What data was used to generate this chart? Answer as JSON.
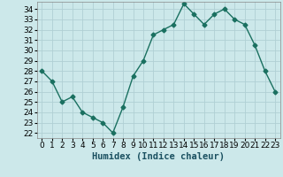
{
  "x": [
    0,
    1,
    2,
    3,
    4,
    5,
    6,
    7,
    8,
    9,
    10,
    11,
    12,
    13,
    14,
    15,
    16,
    17,
    18,
    19,
    20,
    21,
    22,
    23
  ],
  "y": [
    28,
    27,
    25,
    25.5,
    24,
    23.5,
    23,
    22,
    24.5,
    27.5,
    29,
    31.5,
    32,
    32.5,
    34.5,
    33.5,
    32.5,
    33.5,
    34,
    33,
    32.5,
    30.5,
    28,
    26
  ],
  "line_color": "#1a7060",
  "marker": "D",
  "marker_size": 2.5,
  "bg_color": "#cce8ea",
  "grid_color": "#b0d0d4",
  "xlabel": "Humidex (Indice chaleur)",
  "ylim": [
    21.5,
    34.7
  ],
  "xlim": [
    -0.5,
    23.5
  ],
  "yticks": [
    22,
    23,
    24,
    25,
    26,
    27,
    28,
    29,
    30,
    31,
    32,
    33,
    34
  ],
  "xticks": [
    0,
    1,
    2,
    3,
    4,
    5,
    6,
    7,
    8,
    9,
    10,
    11,
    12,
    13,
    14,
    15,
    16,
    17,
    18,
    19,
    20,
    21,
    22,
    23
  ],
  "tick_fontsize": 6.5,
  "xlabel_fontsize": 7.5,
  "linewidth": 1.0
}
